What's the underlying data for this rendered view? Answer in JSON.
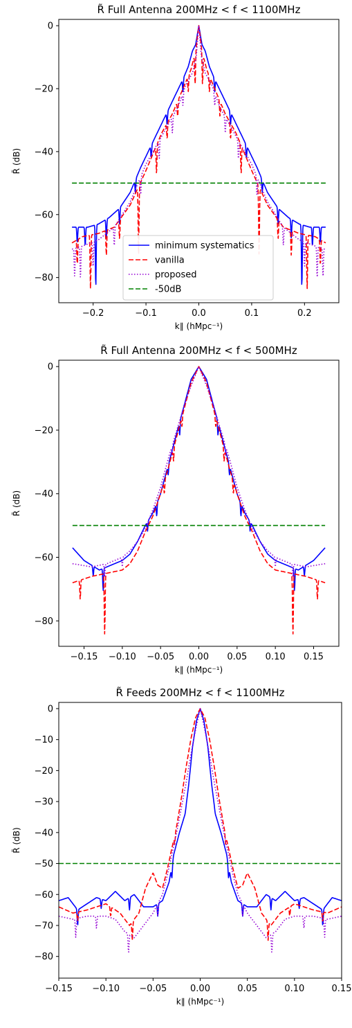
{
  "chart_data": [
    {
      "type": "line",
      "title": "R̃ Full Antenna 200MHz < f < 1100MHz",
      "xlabel": "k∥ (hMpc⁻¹)",
      "ylabel": "R̃ (dB)",
      "xlim": [
        -0.265,
        0.265
      ],
      "ylim": [
        -88,
        2
      ],
      "xticks": [
        -0.2,
        -0.1,
        0.0,
        0.1,
        0.2
      ],
      "xtick_labels": [
        "−0.2",
        "−0.1",
        "0.0",
        "0.1",
        "0.2"
      ],
      "yticks": [
        0,
        -20,
        -40,
        -60,
        -80
      ],
      "ytick_labels": [
        "0",
        "−20",
        "−40",
        "−60",
        "−80"
      ],
      "grid": false,
      "legend": "lower center",
      "kmax": 0.24,
      "series": [
        {
          "name": "minimum systematics",
          "color": "#0000ff",
          "style": "solid",
          "profile": [
            [
              0,
              0
            ],
            [
              0.006,
              -6
            ],
            [
              0.012,
              -8
            ],
            [
              0.02,
              -13
            ],
            [
              0.03,
              -17
            ],
            [
              0.05,
              -24
            ],
            [
              0.07,
              -31
            ],
            [
              0.09,
              -38
            ],
            [
              0.11,
              -45
            ],
            [
              0.13,
              -53
            ],
            [
              0.15,
              -58
            ],
            [
              0.17,
              -61
            ],
            [
              0.19,
              -63
            ],
            [
              0.21,
              -64
            ],
            [
              0.24,
              -64
            ]
          ],
          "dips": [
            [
              0.03,
              -4
            ],
            [
              0.06,
              -4
            ],
            [
              0.09,
              -4
            ],
            [
              0.12,
              -4
            ],
            [
              0.15,
              -5
            ],
            [
              0.175,
              -6
            ],
            [
              0.195,
              -20
            ],
            [
              0.215,
              -6
            ],
            [
              0.23,
              -5
            ]
          ]
        },
        {
          "name": "vanilla",
          "color": "#ff0000",
          "style": "dashed",
          "profile": [
            [
              0,
              0
            ],
            [
              0.006,
              -8
            ],
            [
              0.015,
              -14
            ],
            [
              0.03,
              -20
            ],
            [
              0.05,
              -28
            ],
            [
              0.07,
              -34
            ],
            [
              0.09,
              -42
            ],
            [
              0.1,
              -46
            ],
            [
              0.13,
              -57
            ],
            [
              0.16,
              -64
            ],
            [
              0.19,
              -66
            ],
            [
              0.22,
              -67
            ],
            [
              0.24,
              -69
            ]
          ],
          "dips": [
            [
              0.007,
              -10
            ],
            [
              0.02,
              -5
            ],
            [
              0.04,
              -5
            ],
            [
              0.06,
              -5
            ],
            [
              0.08,
              -9
            ],
            [
              0.114,
              -22
            ],
            [
              0.15,
              -6
            ],
            [
              0.175,
              -8
            ],
            [
              0.205,
              -17
            ],
            [
              0.23,
              -8
            ]
          ]
        },
        {
          "name": "proposed",
          "color": "#9400d3",
          "style": "dotted",
          "profile": [
            [
              0,
              0
            ],
            [
              0.005,
              -10
            ],
            [
              0.012,
              -15
            ],
            [
              0.025,
              -19
            ],
            [
              0.04,
              -26
            ],
            [
              0.06,
              -32
            ],
            [
              0.08,
              -38
            ],
            [
              0.1,
              -44
            ],
            [
              0.13,
              -56
            ],
            [
              0.16,
              -64
            ],
            [
              0.19,
              -68
            ],
            [
              0.22,
              -70
            ],
            [
              0.24,
              -71
            ]
          ],
          "dips": [
            [
              0.03,
              -4
            ],
            [
              0.05,
              -5
            ],
            [
              0.075,
              -6
            ],
            [
              0.11,
              -6
            ],
            [
              0.16,
              -6
            ],
            [
              0.2,
              -8
            ],
            [
              0.224,
              -10
            ],
            [
              0.235,
              -9
            ]
          ]
        },
        {
          "name": "-50dB",
          "color": "#008000",
          "style": "dashed",
          "constant": -50
        }
      ]
    },
    {
      "type": "line",
      "title": "R̃ Full Antenna 200MHz < f < 500MHz",
      "xlabel": "k∥ (hMpc⁻¹)",
      "ylabel": "R̃ (dB)",
      "xlim": [
        -0.183,
        0.183
      ],
      "ylim": [
        -88,
        2
      ],
      "xticks": [
        -0.15,
        -0.1,
        -0.05,
        0.0,
        0.05,
        0.1,
        0.15
      ],
      "xtick_labels": [
        "−0.15",
        "−0.10",
        "−0.05",
        "0.00",
        "0.05",
        "0.10",
        "0.15"
      ],
      "yticks": [
        0,
        -20,
        -40,
        -60,
        -80
      ],
      "ytick_labels": [
        "0",
        "−20",
        "−40",
        "−60",
        "−80"
      ],
      "grid": false,
      "kmax": 0.165,
      "series": [
        {
          "name": "minimum systematics",
          "color": "#0000ff",
          "style": "solid",
          "profile": [
            [
              0,
              0
            ],
            [
              0.01,
              -4
            ],
            [
              0.02,
              -13
            ],
            [
              0.03,
              -22
            ],
            [
              0.04,
              -31
            ],
            [
              0.05,
              -40
            ],
            [
              0.06,
              -46
            ],
            [
              0.07,
              -50
            ],
            [
              0.08,
              -55
            ],
            [
              0.09,
              -59
            ],
            [
              0.1,
              -61
            ],
            [
              0.11,
              -62
            ],
            [
              0.13,
              -64
            ],
            [
              0.15,
              -61
            ],
            [
              0.165,
              -57
            ]
          ],
          "dips": [
            [
              0.025,
              -4
            ],
            [
              0.04,
              -3
            ],
            [
              0.055,
              -4
            ],
            [
              0.067,
              -3
            ],
            [
              0.125,
              -7
            ],
            [
              0.138,
              -3
            ]
          ]
        },
        {
          "name": "vanilla",
          "color": "#ff0000",
          "style": "dashed",
          "profile": [
            [
              0,
              0
            ],
            [
              0.01,
              -5
            ],
            [
              0.02,
              -14
            ],
            [
              0.03,
              -23
            ],
            [
              0.04,
              -32
            ],
            [
              0.05,
              -40
            ],
            [
              0.06,
              -47
            ],
            [
              0.07,
              -52
            ],
            [
              0.08,
              -58
            ],
            [
              0.09,
              -62
            ],
            [
              0.1,
              -64
            ],
            [
              0.12,
              -65
            ],
            [
              0.14,
              -66
            ],
            [
              0.165,
              -68
            ]
          ],
          "dips": [
            [
              0.022,
              -3
            ],
            [
              0.033,
              -4
            ],
            [
              0.045,
              -4
            ],
            [
              0.123,
              -19
            ],
            [
              0.155,
              -6
            ]
          ]
        },
        {
          "name": "proposed",
          "color": "#9400d3",
          "style": "dotted",
          "profile": [
            [
              0,
              0
            ],
            [
              0.01,
              -6
            ],
            [
              0.02,
              -13
            ],
            [
              0.03,
              -21
            ],
            [
              0.04,
              -29
            ],
            [
              0.05,
              -38
            ],
            [
              0.06,
              -45
            ],
            [
              0.07,
              -51
            ],
            [
              0.08,
              -55
            ],
            [
              0.09,
              -58
            ],
            [
              0.1,
              -60
            ],
            [
              0.12,
              -62
            ],
            [
              0.14,
              -63
            ],
            [
              0.165,
              -62
            ]
          ],
          "dips": [
            [
              0.035,
              -3
            ],
            [
              0.1,
              -3
            ],
            [
              0.123,
              -4
            ]
          ]
        },
        {
          "name": "-50dB",
          "color": "#008000",
          "style": "dashed",
          "constant": -50
        }
      ]
    },
    {
      "type": "line",
      "title": "R̃ Feeds 200MHz < f < 1100MHz",
      "xlabel": "k∥ (hMpc⁻¹)",
      "ylabel": "R̃ (dB)",
      "xlim": [
        -0.15,
        0.15
      ],
      "ylim": [
        -87,
        2
      ],
      "xticks": [
        -0.15,
        -0.1,
        -0.05,
        0.0,
        0.05,
        0.1,
        0.15
      ],
      "xtick_labels": [
        "−0.15",
        "−0.10",
        "−0.05",
        "0.00",
        "0.05",
        "0.10",
        "0.15"
      ],
      "yticks": [
        0,
        -10,
        -20,
        -30,
        -40,
        -50,
        -60,
        -70,
        -80
      ],
      "ytick_labels": [
        "0",
        "−10",
        "−20",
        "−30",
        "−40",
        "−50",
        "−60",
        "−70",
        "−80"
      ],
      "grid": false,
      "kmax": 0.15,
      "series": [
        {
          "name": "minimum systematics",
          "color": "#0000ff",
          "style": "solid",
          "profile": [
            [
              0,
              0
            ],
            [
              0.004,
              -4
            ],
            [
              0.008,
              -12
            ],
            [
              0.012,
              -24
            ],
            [
              0.016,
              -34
            ],
            [
              0.022,
              -40
            ],
            [
              0.028,
              -47
            ],
            [
              0.033,
              -56
            ],
            [
              0.04,
              -62
            ],
            [
              0.05,
              -64
            ],
            [
              0.06,
              -64
            ],
            [
              0.07,
              -60
            ],
            [
              0.08,
              -62
            ],
            [
              0.09,
              -59
            ],
            [
              0.1,
              -62
            ],
            [
              0.11,
              -61
            ],
            [
              0.13,
              -65
            ],
            [
              0.14,
              -61
            ],
            [
              0.15,
              -62
            ]
          ],
          "dips": [
            [
              0.03,
              -4
            ],
            [
              0.045,
              -4
            ],
            [
              0.075,
              -4
            ],
            [
              0.105,
              -3
            ],
            [
              0.13,
              -5
            ]
          ]
        },
        {
          "name": "vanilla",
          "color": "#ff0000",
          "style": "dashed",
          "profile": [
            [
              0,
              0
            ],
            [
              0.005,
              -3
            ],
            [
              0.01,
              -10
            ],
            [
              0.015,
              -19
            ],
            [
              0.02,
              -29
            ],
            [
              0.025,
              -38
            ],
            [
              0.03,
              -45
            ],
            [
              0.035,
              -52
            ],
            [
              0.04,
              -58
            ],
            [
              0.045,
              -57
            ],
            [
              0.05,
              -53
            ],
            [
              0.058,
              -58
            ],
            [
              0.065,
              -66
            ],
            [
              0.075,
              -70
            ],
            [
              0.085,
              -66
            ],
            [
              0.1,
              -63
            ],
            [
              0.12,
              -65
            ],
            [
              0.135,
              -66
            ],
            [
              0.15,
              -64
            ]
          ],
          "dips": [
            [
              0.027,
              -3
            ],
            [
              0.072,
              -6
            ],
            [
              0.095,
              -3
            ],
            [
              0.13,
              -3
            ]
          ]
        },
        {
          "name": "proposed",
          "color": "#9400d3",
          "style": "dotted",
          "profile": [
            [
              0,
              0
            ],
            [
              0.005,
              -7
            ],
            [
              0.01,
              -15
            ],
            [
              0.015,
              -24
            ],
            [
              0.02,
              -32
            ],
            [
              0.025,
              -40
            ],
            [
              0.03,
              -47
            ],
            [
              0.035,
              -54
            ],
            [
              0.04,
              -60
            ],
            [
              0.05,
              -66
            ],
            [
              0.06,
              -70
            ],
            [
              0.07,
              -74
            ],
            [
              0.08,
              -72
            ],
            [
              0.09,
              -68
            ],
            [
              0.1,
              -67
            ],
            [
              0.12,
              -67
            ],
            [
              0.135,
              -68
            ],
            [
              0.15,
              -67
            ]
          ],
          "dips": [
            [
              0.045,
              -4
            ],
            [
              0.076,
              -6
            ],
            [
              0.11,
              -4
            ],
            [
              0.132,
              -6
            ]
          ]
        },
        {
          "name": "-50dB",
          "color": "#008000",
          "style": "dashed",
          "constant": -50
        }
      ]
    }
  ]
}
